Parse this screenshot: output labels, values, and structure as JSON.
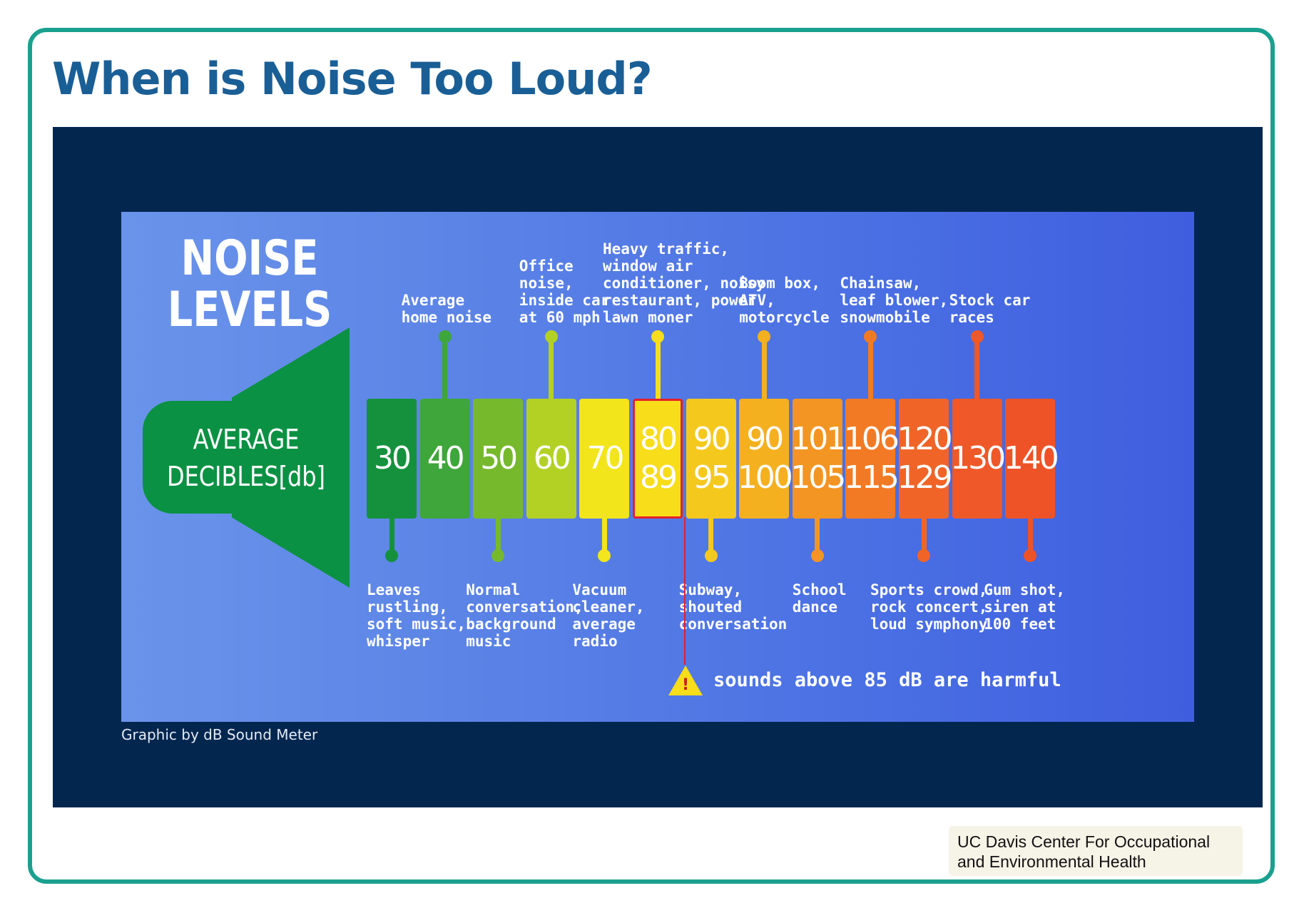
{
  "page": {
    "title": "When is Noise Too Loud?",
    "source_note": "UC Davis Center For Occupational and Environmental Health"
  },
  "infographic": {
    "heading": [
      "NOISE",
      "LEVELS"
    ],
    "speaker_label": [
      "AVERAGE",
      "DECIBLES[db]"
    ],
    "credit": "Graphic by dB Sound Meter",
    "warning": "sounds above 85 dB are harmful",
    "warning_icon": "warning-triangle-icon",
    "levels": [
      {
        "id": "30",
        "lines": [
          "30"
        ],
        "color": "#15913d",
        "stem": "down",
        "label": "Leaves\nrustling,\nsoft music,\nwhisper"
      },
      {
        "id": "40",
        "lines": [
          "40"
        ],
        "color": "#3ea63a",
        "stem": "up",
        "label": "Average\nhome noise"
      },
      {
        "id": "50",
        "lines": [
          "50"
        ],
        "color": "#76b92d",
        "stem": "down",
        "label": "Normal\nconversation,\nbackground\nmusic"
      },
      {
        "id": "60",
        "lines": [
          "60"
        ],
        "color": "#b3d124",
        "stem": "up",
        "label": "Office\nnoise,\ninside car\nat 60 mph"
      },
      {
        "id": "70",
        "lines": [
          "70"
        ],
        "color": "#f2e51b",
        "stem": "down",
        "label": "Vacuum\ncleaner,\naverage\nradio"
      },
      {
        "id": "80-89",
        "lines": [
          "80",
          "89"
        ],
        "color": "#f7dd1a",
        "stem": "up",
        "highlight": true,
        "label": "Heavy traffic,\nwindow air\nconditioner, noisy\nrestaurant, power\nlawn moner"
      },
      {
        "id": "90-95",
        "lines": [
          "90",
          "95"
        ],
        "color": "#f5c81e",
        "stem": "down",
        "label": "Subway,\nshouted\nconversation"
      },
      {
        "id": "90-100",
        "lines": [
          "90",
          "100"
        ],
        "color": "#f4b01f",
        "stem": "up",
        "label": "Boom box,\nATV,\nmotorcycle"
      },
      {
        "id": "101-105",
        "lines": [
          "101",
          "105"
        ],
        "color": "#f39522",
        "stem": "down",
        "label": "School\ndance"
      },
      {
        "id": "106-115",
        "lines": [
          "106",
          "115"
        ],
        "color": "#f27a24",
        "stem": "up",
        "label": "Chainsaw,\nleaf blower,\nsnowmobile"
      },
      {
        "id": "120-129",
        "lines": [
          "120",
          "129"
        ],
        "color": "#f06527",
        "stem": "down",
        "label": "Sports crowd,\nrock concert,\nloud symphony"
      },
      {
        "id": "130",
        "lines": [
          "130"
        ],
        "color": "#ef5828",
        "stem": "up",
        "label": "Stock car\nraces"
      },
      {
        "id": "140",
        "lines": [
          "140"
        ],
        "color": "#ee5328",
        "stem": "down",
        "label": "Gum shot,\nsiren at\n100 feet"
      }
    ]
  }
}
